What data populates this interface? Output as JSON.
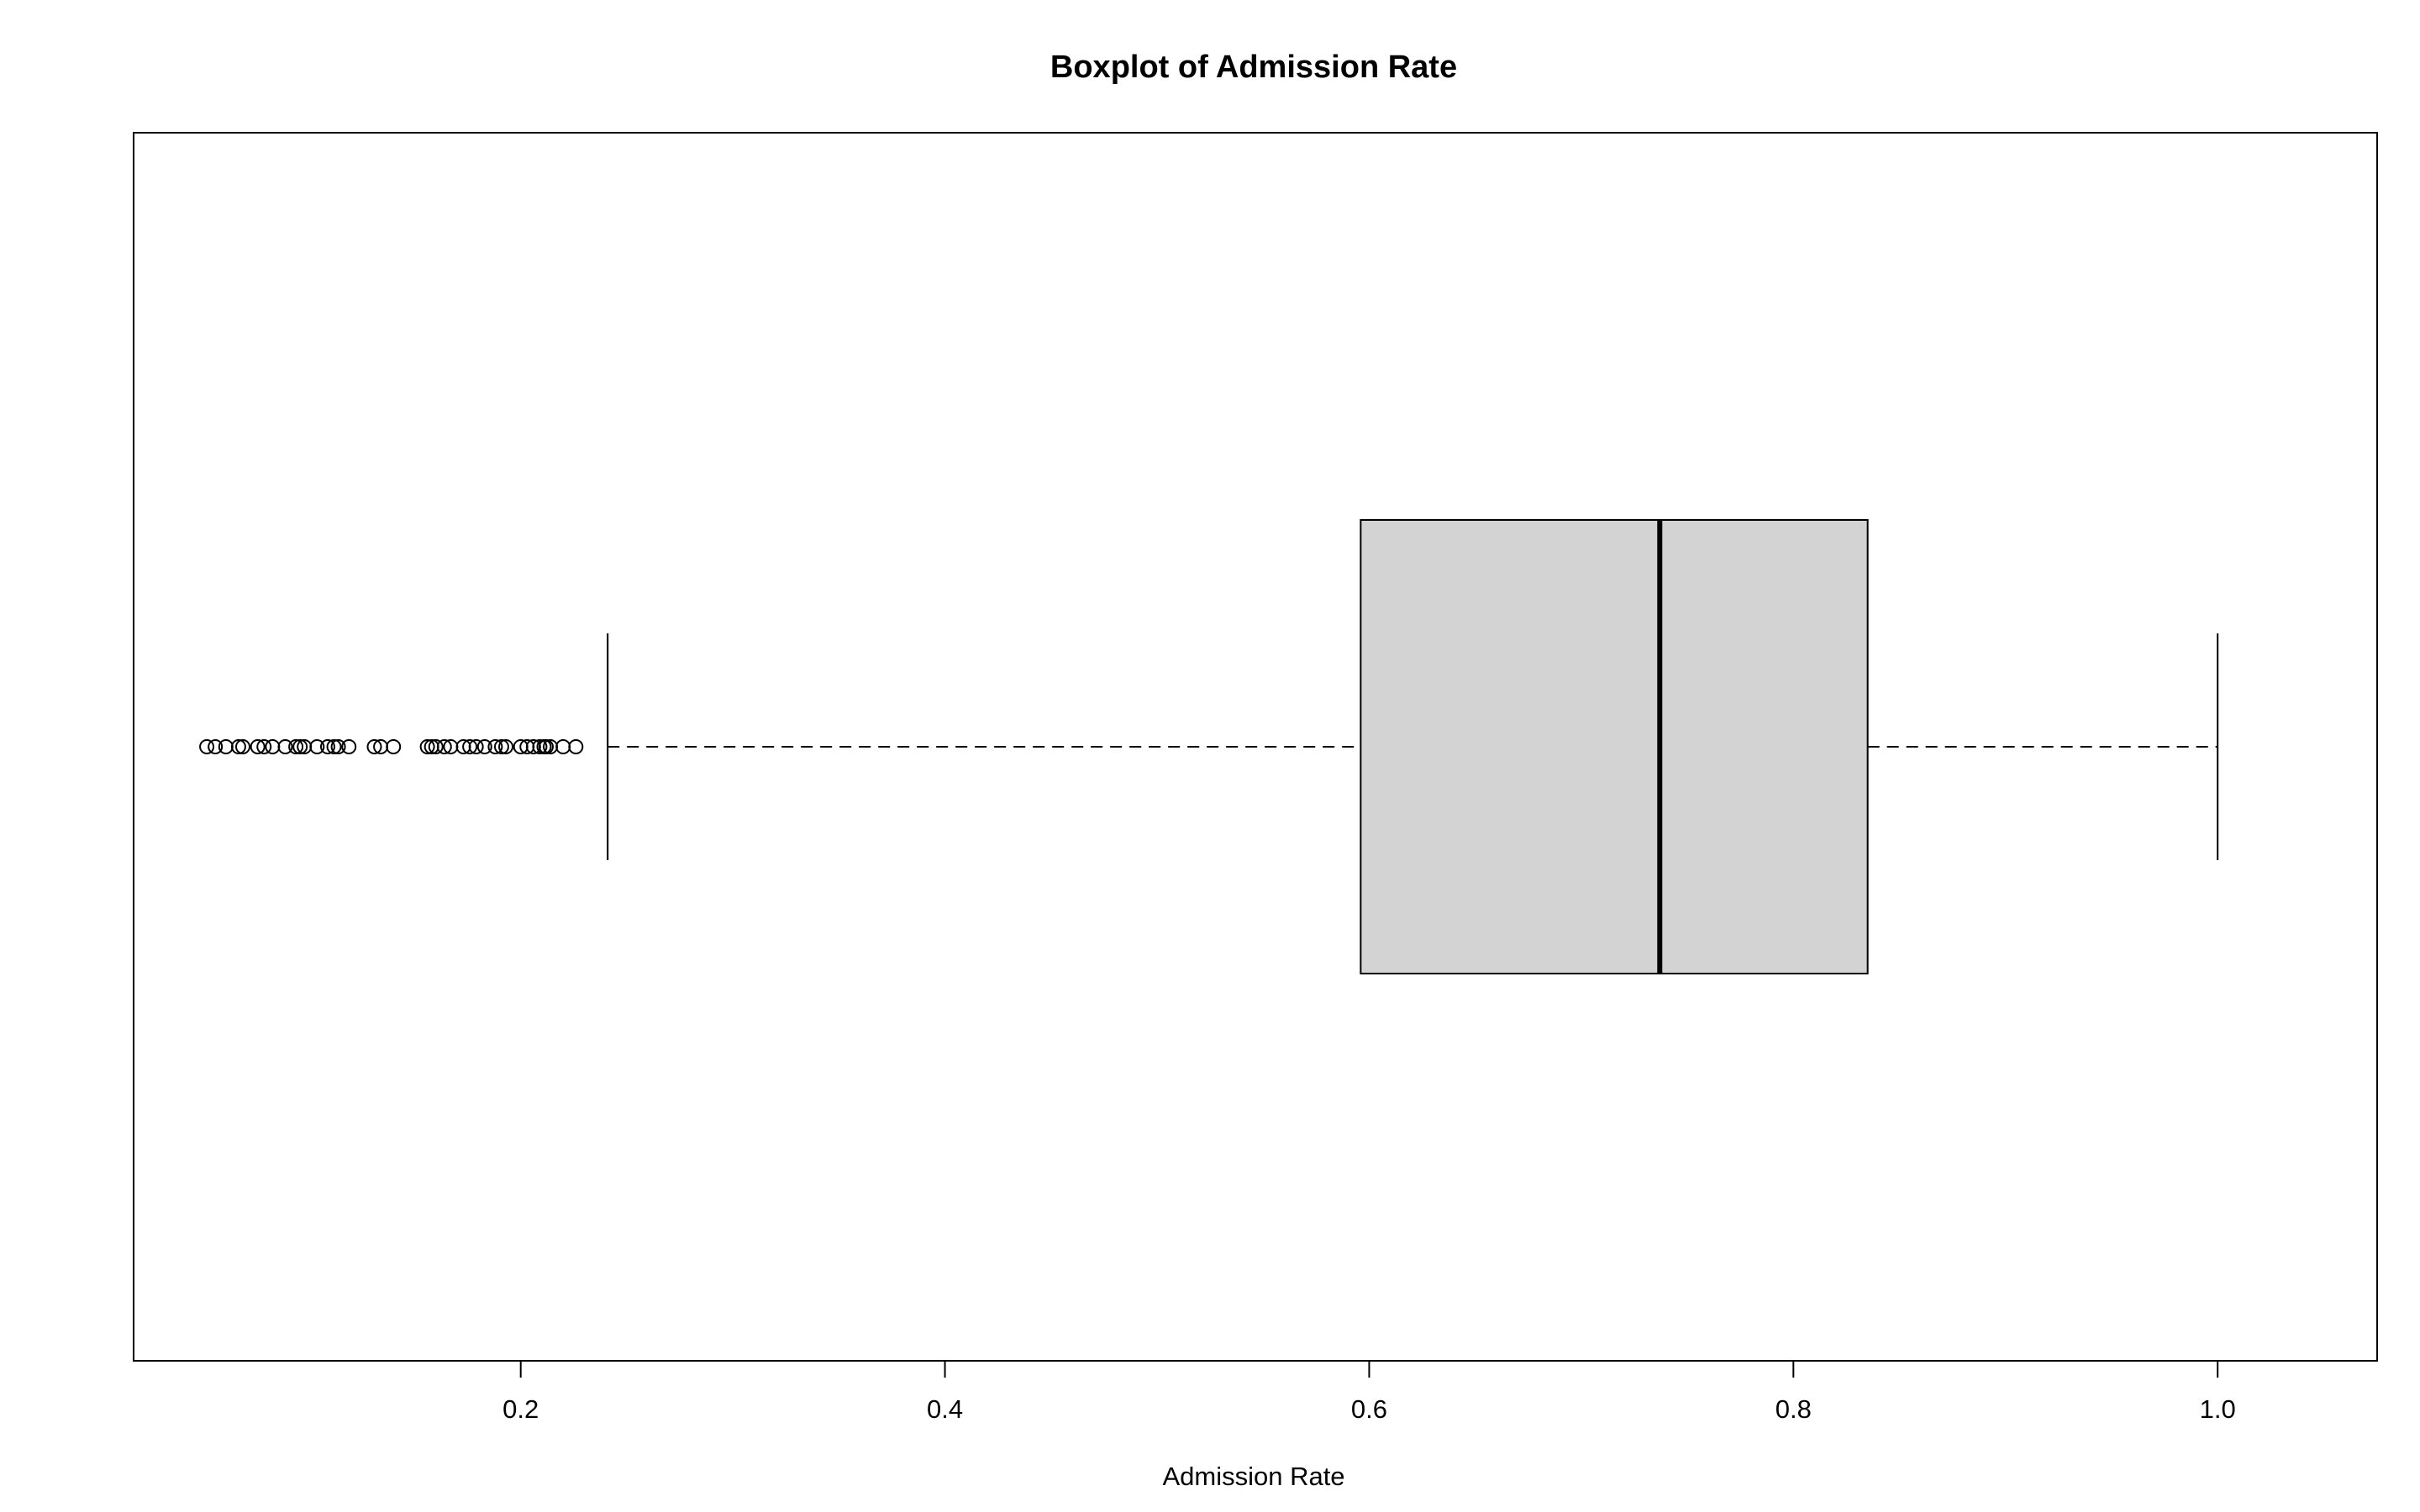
{
  "chart_data": {
    "type": "boxplot",
    "orientation": "horizontal",
    "title": "Boxplot of Admission Rate",
    "xlabel": "Admission Rate",
    "ylabel": "",
    "xlim": [
      0.0175,
      1.0752
    ],
    "x_ticks": [
      0.2,
      0.4,
      0.6,
      0.8,
      1.0
    ],
    "x_tick_labels": [
      "0.2",
      "0.4",
      "0.6",
      "0.8",
      "1.0"
    ],
    "grid": false,
    "box": {
      "whisker_low": 0.241,
      "q1": 0.596,
      "median": 0.737,
      "q3": 0.835,
      "whisker_high": 1.0,
      "fill": "#d3d3d3"
    },
    "outliers": [
      0.052,
      0.056,
      0.061,
      0.067,
      0.069,
      0.076,
      0.079,
      0.083,
      0.089,
      0.094,
      0.096,
      0.098,
      0.104,
      0.109,
      0.112,
      0.114,
      0.119,
      0.131,
      0.134,
      0.14,
      0.156,
      0.158,
      0.16,
      0.164,
      0.167,
      0.173,
      0.176,
      0.179,
      0.183,
      0.188,
      0.191,
      0.193,
      0.2,
      0.203,
      0.206,
      0.209,
      0.211,
      0.212,
      0.214,
      0.22,
      0.226
    ]
  }
}
